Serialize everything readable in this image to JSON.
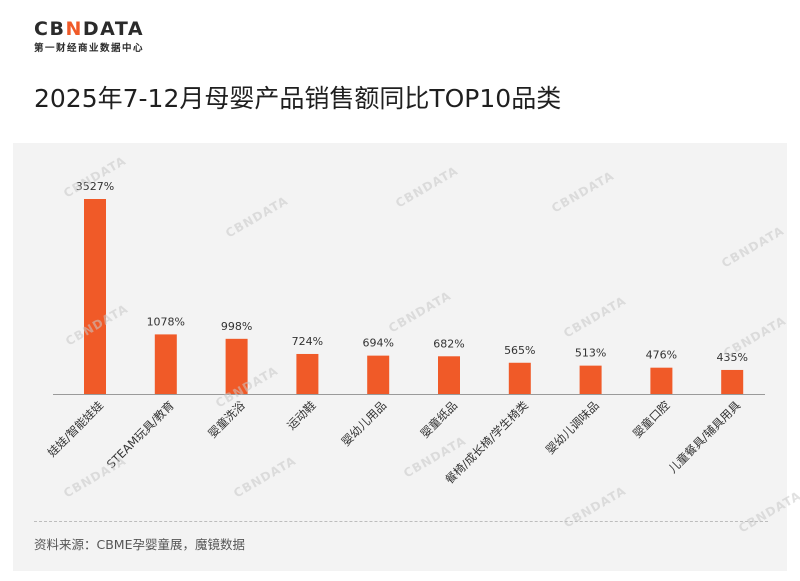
{
  "brand": {
    "logo_pre": "CB",
    "logo_mark": "N",
    "logo_post": "DATA",
    "tagline": "第一财经商业数据中心"
  },
  "header": {
    "title": "2025年7-12月母婴产品销售额同比TOP10品类"
  },
  "footer": {
    "source": "资料来源：CBME孕婴童展，魔镜数据"
  },
  "watermark": {
    "text": "CBNDATA"
  },
  "colors": {
    "bar": "#f05a28",
    "axis": "#9a9a9a",
    "text": "#333333"
  },
  "chart_data": {
    "type": "bar",
    "title": "2025年7-12月母婴产品销售额同比TOP10品类",
    "xlabel": "",
    "ylabel": "",
    "ylim": [
      0,
      3600
    ],
    "grid": false,
    "categories": [
      "娃娃/智能娃娃",
      "STEAM玩具/教育",
      "婴童洗浴",
      "运动鞋",
      "婴幼儿用品",
      "婴童纸品",
      "餐椅/成长椅/学生椅类",
      "婴幼儿调味品",
      "婴童口腔",
      "儿童餐具/辅具用具"
    ],
    "values": [
      3527,
      1078,
      998,
      724,
      694,
      682,
      565,
      513,
      476,
      435
    ],
    "data_labels": [
      "3527%",
      "1078%",
      "998%",
      "724%",
      "694%",
      "682%",
      "565%",
      "513%",
      "476%",
      "435%"
    ]
  }
}
